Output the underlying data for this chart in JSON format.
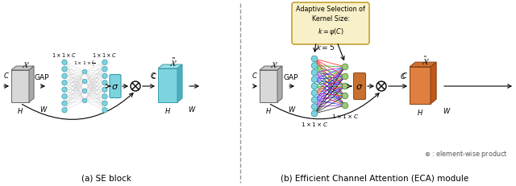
{
  "fig_width": 6.4,
  "fig_height": 2.32,
  "dpi": 100,
  "bg_color": "#ffffff",
  "title_a": "(a) SE block",
  "title_b": "(b) Efficient Channel Attention (ECA) module",
  "otimes_note": "$\\otimes$ : element-wise product",
  "cyan_face": "#7dd4df",
  "cyan_side": "#4ab0c0",
  "cyan_top": "#9ae0ea",
  "cyan_node": "#7dd4df",
  "cyan_node_edge": "#3a9baa",
  "green_node": "#9dc97a",
  "green_node_edge": "#5a8a3a",
  "orange_face": "#e08040",
  "orange_side": "#c05818",
  "orange_top": "#d07030",
  "gray_face": "#d8d8d8",
  "gray_side": "#aaaaaa",
  "gray_top": "#c8c8c8",
  "gray_edge": "#666666",
  "sigma_cyan_face": "#7dd4df",
  "sigma_cyan_edge": "#3a9baa",
  "sigma_brown_face": "#c87030",
  "sigma_brown_edge": "#905020",
  "box_fill": "#f8f0c8",
  "box_edge": "#c8a840",
  "fan_colors": [
    "red",
    "#00aa00",
    "#8800cc",
    "blue",
    "#00aa00",
    "red",
    "blue",
    "#8800cc",
    "black"
  ]
}
